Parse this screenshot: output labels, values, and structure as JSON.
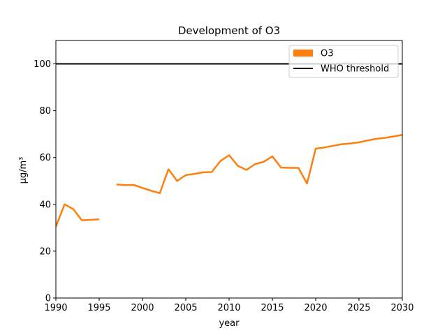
{
  "chart_data": {
    "type": "line",
    "title": "Development of O3",
    "xlabel": "year",
    "ylabel": "µg/m³",
    "xlim": [
      1990,
      2030
    ],
    "ylim": [
      0,
      110
    ],
    "xticks": [
      1990,
      1995,
      2000,
      2005,
      2010,
      2015,
      2020,
      2025,
      2030
    ],
    "yticks": [
      0,
      20,
      40,
      60,
      80,
      100
    ],
    "grid": false,
    "legend_position": "top-right",
    "series": [
      {
        "name": "O3",
        "color": "#ff7f0e",
        "segments": [
          [
            [
              1990,
              30.5
            ],
            [
              1991,
              40.0
            ],
            [
              1992,
              38.0
            ],
            [
              1993,
              33.2
            ],
            [
              1994,
              33.4
            ],
            [
              1995,
              33.6
            ]
          ],
          [
            [
              1997,
              48.5
            ],
            [
              1998,
              48.2
            ],
            [
              1999,
              48.3
            ],
            [
              2000,
              47.0
            ],
            [
              2001,
              45.8
            ],
            [
              2002,
              44.8
            ],
            [
              2003,
              55.0
            ],
            [
              2004,
              50.0
            ],
            [
              2005,
              52.5
            ],
            [
              2006,
              53.0
            ],
            [
              2007,
              53.7
            ],
            [
              2008,
              53.8
            ],
            [
              2009,
              58.5
            ],
            [
              2010,
              61.0
            ],
            [
              2011,
              56.5
            ],
            [
              2012,
              54.7
            ],
            [
              2013,
              57.2
            ],
            [
              2014,
              58.2
            ],
            [
              2015,
              60.5
            ],
            [
              2016,
              55.7
            ],
            [
              2017,
              55.6
            ],
            [
              2018,
              55.6
            ],
            [
              2019,
              48.9
            ],
            [
              2020,
              63.8
            ],
            [
              2021,
              64.3
            ],
            [
              2022,
              65.0
            ],
            [
              2023,
              65.7
            ],
            [
              2024,
              66.0
            ],
            [
              2025,
              66.5
            ],
            [
              2026,
              67.3
            ],
            [
              2027,
              68.0
            ],
            [
              2028,
              68.4
            ],
            [
              2029,
              69.0
            ],
            [
              2030,
              69.7
            ]
          ]
        ]
      }
    ],
    "reference_lines": [
      {
        "name": "WHO threshold",
        "y": 100,
        "color": "#000000"
      }
    ],
    "legend": [
      {
        "label": "O3",
        "kind": "patch",
        "color": "#ff7f0e"
      },
      {
        "label": "WHO threshold",
        "kind": "line",
        "color": "#000000"
      }
    ]
  }
}
